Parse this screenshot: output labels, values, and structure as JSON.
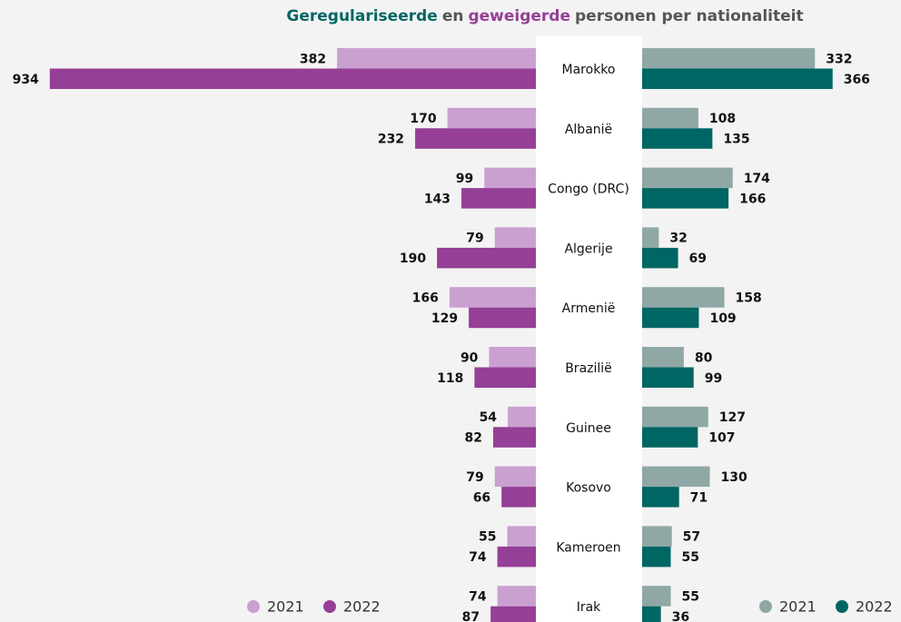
{
  "chart_data": {
    "type": "butterfly",
    "title_parts": [
      {
        "text": "Geregulariseerde",
        "color": "#006663"
      },
      {
        "text": "en",
        "color": "#555555"
      },
      {
        "text": "geweigerde",
        "color": "#953f96"
      },
      {
        "text": "personen per nationaliteit",
        "color": "#555555"
      }
    ],
    "categories": [
      "Marokko",
      "Albanië",
      "Congo (DRC)",
      "Algerije",
      "Armenië",
      "Brazilië",
      "Guinee",
      "Kosovo",
      "Kameroen",
      "Irak"
    ],
    "left": {
      "series": [
        {
          "name": "2021",
          "color": "#c9a0d0",
          "values": [
            382,
            170,
            99,
            79,
            166,
            90,
            54,
            79,
            55,
            74
          ]
        },
        {
          "name": "2022",
          "color": "#953f96",
          "values": [
            934,
            232,
            143,
            190,
            129,
            118,
            82,
            66,
            74,
            87
          ]
        }
      ]
    },
    "right": {
      "series": [
        {
          "name": "2021",
          "color": "#8fa8a5",
          "values": [
            332,
            108,
            174,
            32,
            158,
            80,
            127,
            130,
            57,
            55
          ]
        },
        {
          "name": "2022",
          "color": "#006663",
          "values": [
            366,
            135,
            166,
            69,
            109,
            99,
            107,
            71,
            55,
            36
          ]
        }
      ]
    }
  }
}
